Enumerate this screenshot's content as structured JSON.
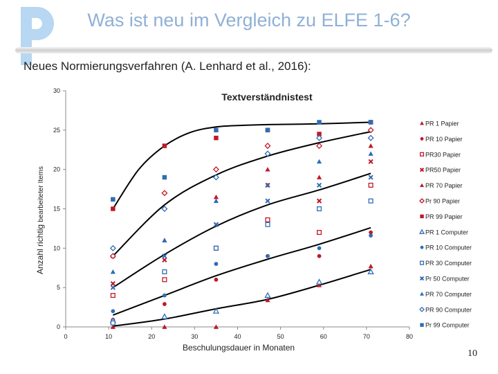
{
  "slide": {
    "title": "Was ist neu im Vergleich zu ELFE 1-6?",
    "subtitle": "Neues Normierungsverfahren (A.  Lenhard et al., 2016):",
    "page_number": "10"
  },
  "colors": {
    "red": "#c0182a",
    "blue": "#2e6db4",
    "curve": "#000000",
    "title": "#8fb0d6"
  },
  "chart_data": {
    "type": "scatter",
    "title": "Textverständnistest",
    "xlabel": "Beschulungsdauer  in Monaten",
    "ylabel_main": "Anzahl richtig",
    "ylabel_small": "bearbeiteter Items",
    "xlim": [
      0,
      80
    ],
    "ylim": [
      0,
      30
    ],
    "xticks": [
      0,
      10,
      20,
      30,
      40,
      50,
      60,
      70,
      80
    ],
    "yticks": [
      0,
      5,
      10,
      15,
      20,
      25,
      30
    ],
    "x": [
      11,
      23,
      35,
      47,
      59,
      71
    ],
    "series": [
      {
        "name": "PR 1 Papier",
        "marker": "triangle-filled",
        "color": "red",
        "values": [
          0,
          0,
          0,
          3.4,
          5.3,
          7.7
        ]
      },
      {
        "name": "PR 10 Papier",
        "marker": "dot",
        "color": "red",
        "values": [
          0.9,
          2.9,
          6,
          9,
          9,
          12
        ]
      },
      {
        "name": "PR30 Papier",
        "marker": "square-open",
        "color": "red",
        "values": [
          4,
          6,
          10,
          13.6,
          12,
          18
        ]
      },
      {
        "name": "PR50 Papier",
        "marker": "x",
        "color": "red",
        "values": [
          5.5,
          8.5,
          13,
          18,
          16,
          21
        ]
      },
      {
        "name": "PR 70 Papier",
        "marker": "triangle-filled",
        "color": "red",
        "values": [
          9,
          11,
          16.5,
          20,
          19,
          23
        ]
      },
      {
        "name": "Pr 90 Papier",
        "marker": "diamond-open",
        "color": "red",
        "values": [
          9,
          17,
          20,
          23,
          23,
          25
        ]
      },
      {
        "name": "PR 99 Papier",
        "marker": "square-filled",
        "color": "red",
        "values": [
          15,
          23,
          24,
          25,
          24.5,
          26
        ]
      },
      {
        "name": "PR 1 Computer",
        "marker": "triangle-open",
        "color": "blue",
        "values": [
          0.8,
          1.3,
          2,
          4,
          5.7,
          7
        ]
      },
      {
        "name": "PR 10 Computer",
        "marker": "dot",
        "color": "blue",
        "values": [
          2,
          4,
          8,
          9,
          10,
          11.6
        ]
      },
      {
        "name": "PR 30 Computer",
        "marker": "square-open",
        "color": "blue",
        "values": [
          0.5,
          7,
          10,
          13,
          15,
          16
        ]
      },
      {
        "name": "Pr 50 Computer",
        "marker": "x",
        "color": "blue",
        "values": [
          5,
          9,
          13,
          16,
          18,
          19
        ]
      },
      {
        "name": "PR 70 Computer",
        "marker": "triangle-filled",
        "color": "blue",
        "values": [
          7,
          11,
          16,
          18,
          21,
          22
        ]
      },
      {
        "name": "PR 90 Computer",
        "marker": "diamond-open",
        "color": "blue",
        "values": [
          10,
          15,
          19,
          22,
          24,
          24
        ]
      },
      {
        "name": "Pr 99 Computer",
        "marker": "square-filled",
        "color": "blue",
        "values": [
          16.2,
          19,
          25,
          25,
          26,
          26
        ]
      }
    ],
    "curves": [
      {
        "x": [
          11,
          23,
          35,
          47,
          59,
          71
        ],
        "y": [
          0.1,
          1,
          2.3,
          3.5,
          5.3,
          7.3
        ]
      },
      {
        "x": [
          11,
          23,
          35,
          47,
          59,
          71
        ],
        "y": [
          1.5,
          4,
          6.5,
          8.6,
          10.5,
          12.6
        ]
      },
      {
        "x": [
          11,
          23,
          35,
          47,
          59,
          71
        ],
        "y": [
          5,
          9.2,
          12.8,
          15.5,
          17.4,
          19.5
        ]
      },
      {
        "x": [
          11,
          23,
          35,
          47,
          59,
          71
        ],
        "y": [
          9,
          15.5,
          19.3,
          21.7,
          23.4,
          24.8
        ]
      },
      {
        "x": [
          11,
          17,
          23,
          29,
          35,
          41,
          47,
          59,
          71
        ],
        "y": [
          15,
          20,
          23,
          24.7,
          25.4,
          25.6,
          25.7,
          25.8,
          26
        ]
      }
    ]
  }
}
